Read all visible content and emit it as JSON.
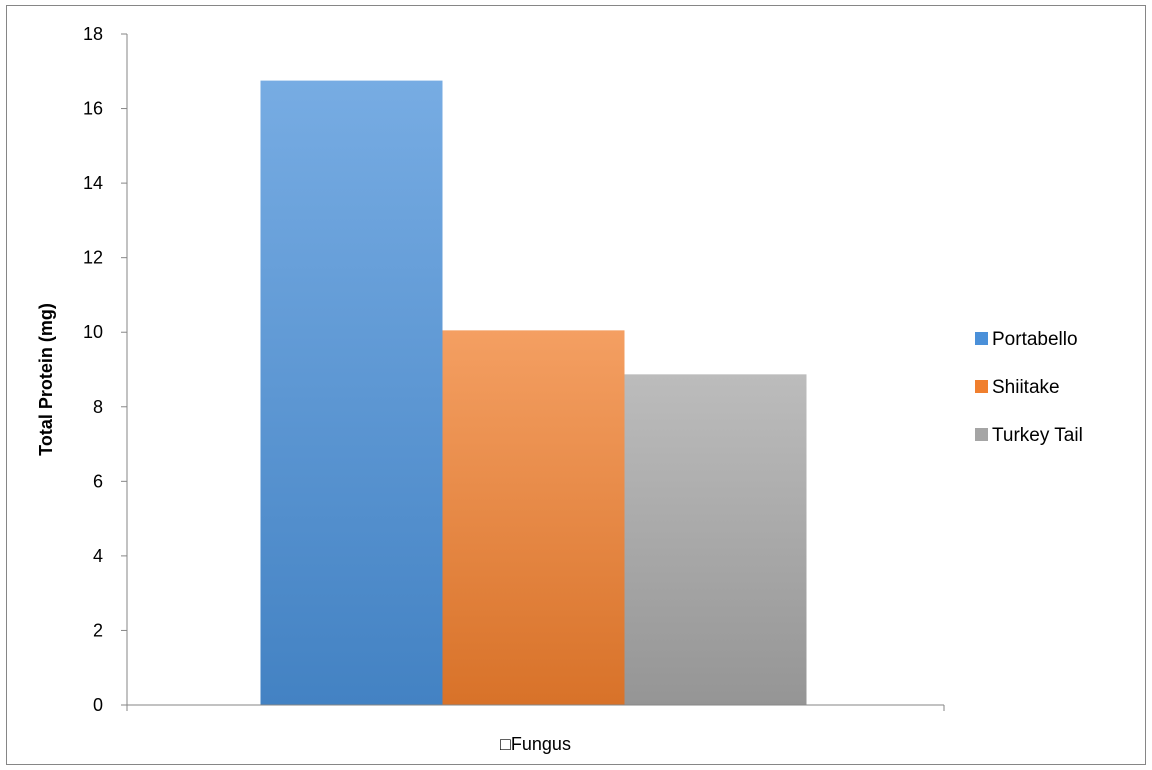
{
  "chart_data": {
    "type": "bar",
    "title": "",
    "xlabel": "",
    "ylabel": "Total Protein (mg)",
    "categories": [
      "□Fungus"
    ],
    "ylim": [
      0,
      18
    ],
    "yticks": [
      0,
      2,
      4,
      6,
      8,
      10,
      12,
      14,
      16,
      18
    ],
    "grid": false,
    "legend_placement": "right",
    "series": [
      {
        "name": "Portabello",
        "values": [
          16.75
        ],
        "color": "#4a90d9"
      },
      {
        "name": "Shiitake",
        "values": [
          10.05
        ],
        "color": "#f07f2e"
      },
      {
        "name": "Turkey Tail",
        "values": [
          8.87
        ],
        "color": "#a5a5a5"
      }
    ]
  }
}
